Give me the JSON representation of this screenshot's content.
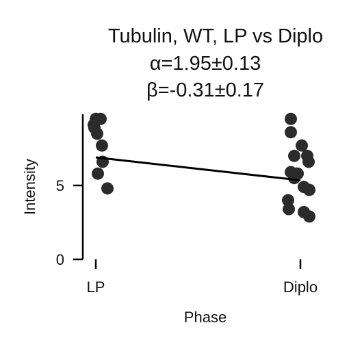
{
  "chart_data": {
    "type": "scatter",
    "title_lines": [
      "Tubulin, WT, LP vs Diplo",
      "α=1.95±0.13",
      "β=-0.31±0.17"
    ],
    "xlabel": "Phase",
    "ylabel": "Intensity",
    "categories": [
      "LP",
      "Diplo"
    ],
    "y_ticks": [
      "0",
      "5"
    ],
    "ylim": [
      0,
      9.6
    ],
    "grid": false,
    "legend": "none",
    "points": [
      {
        "category": "LP",
        "jitter": 0.0,
        "y": 9.5
      },
      {
        "category": "LP",
        "jitter": 0.07,
        "y": 9.5
      },
      {
        "category": "LP",
        "jitter": -0.03,
        "y": 9.1
      },
      {
        "category": "LP",
        "jitter": -0.02,
        "y": 8.9
      },
      {
        "category": "LP",
        "jitter": 0.02,
        "y": 8.5
      },
      {
        "category": "LP",
        "jitter": 0.09,
        "y": 7.7
      },
      {
        "category": "LP",
        "jitter": 0.1,
        "y": 6.6
      },
      {
        "category": "LP",
        "jitter": 0.03,
        "y": 5.8
      },
      {
        "category": "LP",
        "jitter": 0.17,
        "y": 4.8
      },
      {
        "category": "Diplo",
        "jitter": -0.14,
        "y": 9.5
      },
      {
        "category": "Diplo",
        "jitter": -0.14,
        "y": 8.6
      },
      {
        "category": "Diplo",
        "jitter": 0.02,
        "y": 7.7
      },
      {
        "category": "Diplo",
        "jitter": -0.09,
        "y": 7.0
      },
      {
        "category": "Diplo",
        "jitter": 0.1,
        "y": 7.0
      },
      {
        "category": "Diplo",
        "jitter": 0.12,
        "y": 6.6
      },
      {
        "category": "Diplo",
        "jitter": -0.14,
        "y": 5.9
      },
      {
        "category": "Diplo",
        "jitter": -0.06,
        "y": 5.8
      },
      {
        "category": "Diplo",
        "jitter": -0.04,
        "y": 5.8
      },
      {
        "category": "Diplo",
        "jitter": -0.09,
        "y": 5.5
      },
      {
        "category": "Diplo",
        "jitter": 0.05,
        "y": 4.9
      },
      {
        "category": "Diplo",
        "jitter": 0.13,
        "y": 4.7
      },
      {
        "category": "Diplo",
        "jitter": -0.18,
        "y": 4.0
      },
      {
        "category": "Diplo",
        "jitter": -0.17,
        "y": 3.4
      },
      {
        "category": "Diplo",
        "jitter": 0.05,
        "y": 3.2
      },
      {
        "category": "Diplo",
        "jitter": 0.13,
        "y": 2.9
      }
    ],
    "fit_line": {
      "from": {
        "category": "LP",
        "y": 6.9
      },
      "to": {
        "category": "Diplo",
        "y": 5.35
      }
    },
    "marker_color": "#2b2b2b",
    "line_color": "#000000"
  }
}
